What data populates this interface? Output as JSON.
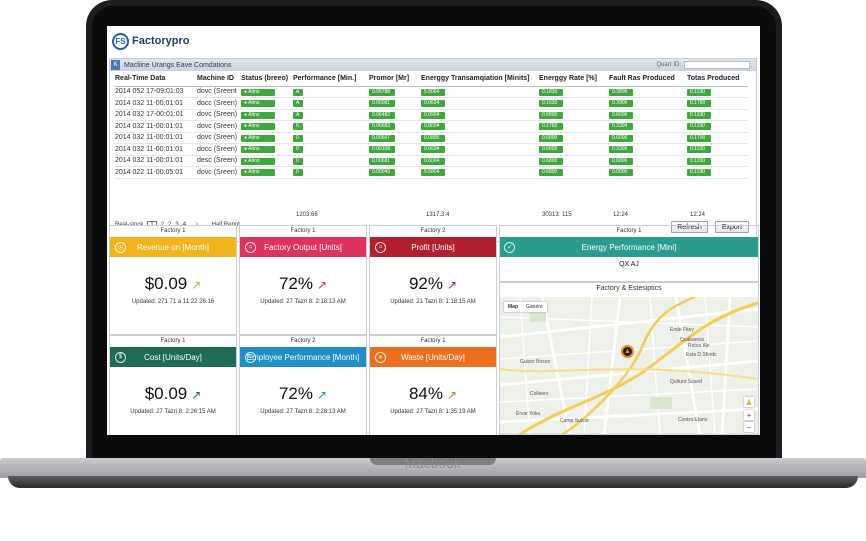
{
  "device": {
    "brand": "Macbook"
  },
  "app": {
    "logo_mark": "FS",
    "name": "Factorypro"
  },
  "table_panel": {
    "title": "Macliine Urangs Eave Comdations",
    "quick_label": "Quarr ID:",
    "columns": [
      "Real-Time Data",
      "Machine ID",
      "Status (breeo)",
      "Performance [Min.]",
      "Promor [Mr]",
      "Energgy Transamqiation [Minits]",
      "Energgy Rate [%]",
      "Fault Ras Produced",
      "Totas Produced"
    ],
    "rows": [
      [
        "2014 052 17-09:01:03",
        "dovc (Sreent",
        "Atino",
        "A",
        "0.06788",
        "5.8064",
        "0.1830",
        "0.3806",
        "0.1190"
      ],
      [
        "2014 032 11-00:01:01",
        "docc (Sreen)",
        "Atino",
        "A",
        "0.06081",
        "0.0604",
        "0.1630",
        "0.3906",
        "0.1780"
      ],
      [
        "2014 032 17-00:01:01",
        "dovc (Sreen)",
        "Atino",
        "A",
        "0.06482",
        "0.0904",
        "0.6800",
        "0.6006",
        "0.1190"
      ],
      [
        "2014 032 11-00:01:01",
        "dovc (Sreen)",
        "Atino",
        "0",
        "0.06683",
        "0.6604",
        "0.1760",
        "0.3304",
        "0.1190"
      ],
      [
        "2014 032 11-00:01:01",
        "dovc (Sreen)",
        "Atino",
        "0",
        "0.00667",
        "0.0805",
        "0.6800",
        "0.6006",
        "0.1790"
      ],
      [
        "2014 032 11-00:01:01",
        "docc (Sreen)",
        "Atino",
        "0",
        "0.00108",
        "0.6604",
        "0.6805",
        "0.3306",
        "0.1190"
      ],
      [
        "2014 032 11-00:01:01",
        "desc (Sreen)",
        "Atino",
        "0",
        "0.00681",
        "0.6004",
        "0.6800",
        "0.6806",
        "0.1190"
      ],
      [
        "2014 022 11-00:05:01",
        "dovc (Sreen)",
        "Atino",
        "0",
        "0.00043",
        "5.6804",
        "0.6800",
        "0.0000",
        "0.1190"
      ]
    ],
    "totals": [
      "1203:66",
      "1317.3:4",
      "30313: 115",
      "12:24",
      "12:24"
    ],
    "pager_label": "Real-stock",
    "pages": [
      "1",
      "2",
      "2",
      "3",
      "4"
    ],
    "pager_next": ">",
    "report_label": "Half Repot",
    "refresh_label": "Refresh",
    "export_label": "Export"
  },
  "cards": [
    {
      "title": "Factory 1",
      "label": "Revenue on [Month]",
      "value": "$0.09",
      "updated": "Updated: 271 71 a 11:22 26.16",
      "color": "#f2b31c",
      "trend_color": "#e0a31a",
      "icon": "clock-icon",
      "glyph": "◷"
    },
    {
      "title": "Factory 1",
      "label": "Factory Output [Units]",
      "value": "72%",
      "updated": "Updated: 27 Tazri 8: 2:18:13 AM",
      "color": "#e0325e",
      "trend_color": "#d42a55",
      "icon": "factory-icon",
      "glyph": "⌂"
    },
    {
      "title": "Factory 2",
      "label": "Profit [Units]",
      "value": "92%",
      "updated": "Updated: 21 Tazri 8: 1:18:15 AM",
      "color": "#b0202e",
      "trend_color": "#b0202e",
      "icon": "factory-icon",
      "glyph": "⌂"
    },
    {
      "title": "Factory 1",
      "label": "Cost [Units/Day]",
      "value": "$0.09",
      "updated": "Updated: 27 Tazri 8: 2:26:15 AM",
      "color": "#1e6b56",
      "trend_color": "#1e6b56",
      "icon": "dollar-icon",
      "glyph": "$"
    },
    {
      "title": "Factory 2",
      "label": "Employee Performance [Month]",
      "value": "72%",
      "updated": "Updated: 27 Tazri 8: 2:28:13 AM",
      "color": "#1f8fc6",
      "trend_color": "#1f8fc6",
      "icon": "person-icon",
      "glyph": "☺"
    },
    {
      "title": "Factory 1",
      "label": "Waste [Units/Day]",
      "value": "84%",
      "updated": "Updated: 27 Tazri 8: 1:35:19 AM",
      "color": "#ec6f1f",
      "trend_color": "#e06a1e",
      "icon": "recycle-icon",
      "glyph": "✕"
    }
  ],
  "energy": {
    "title": "Factory 1",
    "label": "Energy Performance [Mini]",
    "sub": "QX AJ",
    "color": "#2a9d8f"
  },
  "map": {
    "title": "Factory & Estesiptics",
    "tabs": [
      "Map",
      "Gaoére"
    ],
    "labels": [
      "Guizer Bosoo",
      "Qulture Sosed",
      "Colleers",
      "Ende Fitey",
      "Qcabaress",
      "Rotoo Ale",
      "Esta D.Shirdc",
      "Ervar Yoka",
      "Camp Sulcot",
      "Contra Etano"
    ]
  }
}
